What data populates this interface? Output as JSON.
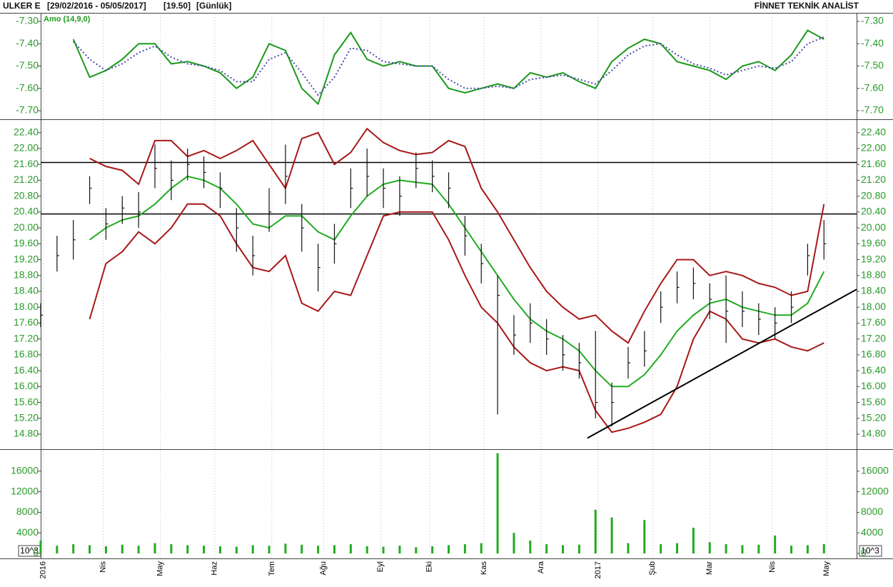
{
  "header": {
    "symbol": "ULKER E",
    "range": "[29/02/2016 - 05/05/2017]",
    "last": "[19.50]",
    "period": "[Günlük]",
    "source": "FİNNET TEKNİK ANALİST"
  },
  "chart_data": [
    {
      "type": "line",
      "label": "Amo (14,9,0)",
      "label_color": "#1a9a1a",
      "x": [
        0,
        6,
        12,
        18,
        24,
        30,
        36,
        42,
        48,
        54,
        60,
        66,
        72,
        78,
        84,
        90,
        96,
        102,
        108,
        114,
        120,
        126,
        132,
        138,
        144,
        150,
        156,
        162,
        168,
        174,
        180,
        186,
        192,
        198,
        204,
        210,
        216,
        222,
        228,
        234,
        240,
        246,
        252,
        258,
        264,
        270,
        276,
        282,
        288
      ],
      "xlim": [
        0,
        300
      ],
      "ylim": [
        -7.732,
        -7.268
      ],
      "yticks": [
        {
          "value": -7.3,
          "label": "-7.30"
        },
        {
          "value": -7.4,
          "label": "-7.40"
        },
        {
          "value": -7.5,
          "label": "-7.50"
        },
        {
          "value": -7.6,
          "label": "-7.60"
        },
        {
          "value": -7.7,
          "label": "-7.70"
        }
      ],
      "series": [
        {
          "color": "#1a9a1a",
          "dash": false,
          "values": [
            null,
            null,
            -7.38,
            -7.55,
            -7.52,
            -7.47,
            -7.4,
            -7.4,
            -7.49,
            -7.48,
            -7.5,
            -7.53,
            -7.6,
            -7.55,
            -7.4,
            -7.43,
            -7.6,
            -7.67,
            -7.45,
            -7.35,
            -7.47,
            -7.5,
            -7.48,
            -7.5,
            -7.5,
            -7.6,
            -7.62,
            -7.6,
            -7.58,
            -7.6,
            -7.53,
            -7.55,
            -7.53,
            -7.57,
            -7.6,
            -7.48,
            -7.42,
            -7.38,
            -7.4,
            -7.48,
            -7.5,
            -7.52,
            -7.56,
            -7.5,
            -7.48,
            -7.52,
            -7.45,
            -7.34,
            -7.38
          ]
        },
        {
          "color": "#4a4aaa",
          "dash": true,
          "values": [
            null,
            null,
            -7.39,
            -7.47,
            -7.52,
            -7.49,
            -7.44,
            -7.41,
            -7.46,
            -7.49,
            -7.5,
            -7.52,
            -7.57,
            -7.57,
            -7.47,
            -7.44,
            -7.53,
            -7.63,
            -7.55,
            -7.42,
            -7.43,
            -7.48,
            -7.49,
            -7.5,
            -7.5,
            -7.56,
            -7.6,
            -7.6,
            -7.59,
            -7.6,
            -7.56,
            -7.55,
            -7.54,
            -7.56,
            -7.58,
            -7.52,
            -7.45,
            -7.41,
            -7.4,
            -7.45,
            -7.49,
            -7.51,
            -7.54,
            -7.52,
            -7.5,
            -7.51,
            -7.48,
            -7.4,
            -7.37
          ]
        }
      ]
    },
    {
      "type": "ohlc",
      "color": "#111111",
      "x": [
        0,
        6,
        12,
        18,
        24,
        30,
        36,
        42,
        48,
        54,
        60,
        66,
        72,
        78,
        84,
        90,
        96,
        102,
        108,
        114,
        120,
        126,
        132,
        138,
        144,
        150,
        156,
        162,
        168,
        174,
        180,
        186,
        192,
        198,
        204,
        210,
        216,
        222,
        228,
        234,
        240,
        246,
        252,
        258,
        264,
        270,
        276,
        282,
        288
      ],
      "high": [
        18.1,
        19.8,
        20.2,
        21.3,
        20.5,
        20.8,
        20.9,
        22.1,
        21.7,
        22.0,
        21.8,
        21.4,
        20.5,
        19.8,
        21.0,
        22.1,
        20.6,
        19.6,
        20.1,
        21.5,
        22.0,
        21.5,
        21.3,
        21.9,
        21.7,
        21.4,
        20.3,
        19.6,
        18.8,
        17.8,
        18.1,
        17.7,
        17.3,
        17.1,
        17.4,
        16.1,
        17.0,
        17.4,
        18.4,
        18.9,
        19.0,
        18.6,
        18.8,
        18.4,
        18.1,
        18.0,
        18.4,
        19.6,
        20.2
      ],
      "low": [
        17.5,
        18.9,
        19.2,
        20.6,
        19.7,
        20.1,
        20.0,
        21.0,
        20.7,
        21.2,
        21.0,
        20.5,
        19.4,
        18.8,
        19.9,
        20.6,
        19.4,
        18.4,
        19.1,
        20.5,
        20.8,
        20.5,
        20.3,
        21.0,
        20.9,
        20.5,
        19.3,
        18.6,
        15.3,
        16.8,
        17.1,
        16.8,
        16.4,
        16.2,
        15.2,
        15.0,
        16.2,
        16.5,
        17.6,
        18.1,
        18.2,
        17.7,
        17.1,
        17.5,
        17.3,
        17.2,
        17.6,
        18.8,
        19.2
      ],
      "close": [
        17.8,
        19.3,
        19.7,
        21.0,
        20.1,
        20.5,
        20.4,
        21.5,
        21.2,
        21.6,
        21.4,
        21.0,
        20.0,
        19.3,
        20.4,
        21.3,
        20.0,
        19.0,
        19.6,
        21.0,
        21.3,
        21.0,
        20.8,
        21.5,
        21.3,
        21.0,
        19.8,
        19.1,
        18.3,
        17.3,
        17.6,
        17.2,
        16.8,
        16.6,
        15.6,
        15.6,
        16.6,
        16.9,
        18.0,
        18.5,
        18.6,
        18.2,
        17.9,
        17.9,
        17.7,
        17.6,
        18.0,
        19.3,
        19.6
      ],
      "xlim": [
        0,
        300
      ],
      "ylim": [
        14.44,
        22.72
      ],
      "yticks": [
        {
          "value": 14.8,
          "label": "14.80"
        },
        {
          "value": 15.2,
          "label": "15.20"
        },
        {
          "value": 15.6,
          "label": "15.60"
        },
        {
          "value": 16.0,
          "label": "16.00"
        },
        {
          "value": 16.4,
          "label": "16.40"
        },
        {
          "value": 16.8,
          "label": "16.80"
        },
        {
          "value": 17.2,
          "label": "17.20"
        },
        {
          "value": 17.6,
          "label": "17.60"
        },
        {
          "value": 18.0,
          "label": "18.00"
        },
        {
          "value": 18.4,
          "label": "18.40"
        },
        {
          "value": 18.8,
          "label": "18.80"
        },
        {
          "value": 19.2,
          "label": "19.20"
        },
        {
          "value": 19.6,
          "label": "19.60"
        },
        {
          "value": 20.0,
          "label": "20.00"
        },
        {
          "value": 20.4,
          "label": "20.40"
        },
        {
          "value": 20.8,
          "label": "20.80"
        },
        {
          "value": 21.2,
          "label": "21.20"
        },
        {
          "value": 21.6,
          "label": "21.60"
        },
        {
          "value": 22.0,
          "label": "22.00"
        },
        {
          "value": 22.4,
          "label": "22.40"
        }
      ],
      "lines": [
        {
          "color": "#a81818",
          "values": [
            null,
            null,
            null,
            21.75,
            21.55,
            21.45,
            21.1,
            22.2,
            22.2,
            21.8,
            21.95,
            21.75,
            21.95,
            22.2,
            21.6,
            21.0,
            22.25,
            22.4,
            21.6,
            21.9,
            22.5,
            22.15,
            21.95,
            21.85,
            21.9,
            22.2,
            22.05,
            21.0,
            20.4,
            19.7,
            19.0,
            18.4,
            18.0,
            17.7,
            17.8,
            17.4,
            17.1,
            17.9,
            18.6,
            19.2,
            19.2,
            18.8,
            18.9,
            18.8,
            18.6,
            18.5,
            18.3,
            18.4,
            20.6
          ]
        },
        {
          "color": "#22aa22",
          "values": [
            null,
            null,
            null,
            19.7,
            20.0,
            20.2,
            20.3,
            20.6,
            21.0,
            21.3,
            21.2,
            21.0,
            20.6,
            20.1,
            20.0,
            20.3,
            20.3,
            19.9,
            19.7,
            20.3,
            20.8,
            21.1,
            21.2,
            21.15,
            21.1,
            20.6,
            20.0,
            19.4,
            18.8,
            18.2,
            17.7,
            17.4,
            17.2,
            16.9,
            16.4,
            16.0,
            16.0,
            16.3,
            16.8,
            17.4,
            17.8,
            18.1,
            18.2,
            18.0,
            17.9,
            17.8,
            17.8,
            18.1,
            18.9
          ]
        },
        {
          "color": "#a81818",
          "values": [
            null,
            null,
            null,
            17.7,
            19.1,
            19.4,
            19.9,
            19.6,
            20.0,
            20.6,
            20.6,
            20.3,
            19.6,
            19.0,
            18.9,
            19.3,
            18.1,
            17.9,
            18.4,
            18.3,
            19.3,
            20.3,
            20.4,
            20.4,
            20.4,
            19.7,
            18.8,
            18.0,
            17.6,
            17.0,
            16.6,
            16.4,
            16.5,
            16.4,
            15.4,
            14.85,
            14.95,
            15.1,
            15.3,
            16.0,
            17.2,
            17.9,
            17.7,
            17.2,
            17.1,
            17.2,
            17.0,
            16.9,
            17.1
          ]
        }
      ],
      "hlines": [
        21.65,
        20.35
      ],
      "trendline": {
        "x": [
          201,
          300
        ],
        "y": [
          14.7,
          18.45
        ]
      }
    },
    {
      "type": "bar",
      "color": "#22aa22",
      "unit": "10^3",
      "grid": "x",
      "x": [
        0,
        6,
        12,
        18,
        24,
        30,
        36,
        42,
        48,
        54,
        60,
        66,
        72,
        78,
        84,
        90,
        96,
        102,
        108,
        114,
        120,
        126,
        132,
        138,
        144,
        150,
        156,
        162,
        168,
        174,
        180,
        186,
        192,
        198,
        204,
        210,
        216,
        222,
        228,
        234,
        240,
        246,
        252,
        258,
        264,
        270,
        276,
        282,
        288
      ],
      "values": [
        2500,
        1500,
        1800,
        1600,
        1400,
        1700,
        1500,
        2000,
        1800,
        1600,
        1500,
        1400,
        1300,
        1600,
        1500,
        1900,
        1700,
        1500,
        1600,
        1800,
        1400,
        1300,
        1500,
        1200,
        1400,
        1600,
        1800,
        2000,
        19500,
        4000,
        2500,
        1800,
        1600,
        1700,
        8500,
        7000,
        2000,
        6500,
        1800,
        2000,
        5000,
        2200,
        1800,
        1600,
        1700,
        3500,
        1500,
        1600,
        1800
      ],
      "xlim": [
        0,
        300
      ],
      "ylim": [
        0,
        20000
      ],
      "yticks": [
        0,
        4000,
        8000,
        12000,
        16000
      ],
      "xticks": [
        {
          "value": 1,
          "label": "2016"
        },
        {
          "value": 23,
          "label": "Nis"
        },
        {
          "value": 44,
          "label": "May"
        },
        {
          "value": 64,
          "label": "Haz"
        },
        {
          "value": 85,
          "label": "Tem"
        },
        {
          "value": 104,
          "label": "Ağu"
        },
        {
          "value": 125,
          "label": "Eyl"
        },
        {
          "value": 143,
          "label": "Eki"
        },
        {
          "value": 163,
          "label": "Kas"
        },
        {
          "value": 184,
          "label": "Ara"
        },
        {
          "value": 205,
          "label": "2017"
        },
        {
          "value": 225,
          "label": "Şub"
        },
        {
          "value": 246,
          "label": "Mar"
        },
        {
          "value": 269,
          "label": "Nis"
        },
        {
          "value": 289,
          "label": "May"
        }
      ]
    }
  ]
}
